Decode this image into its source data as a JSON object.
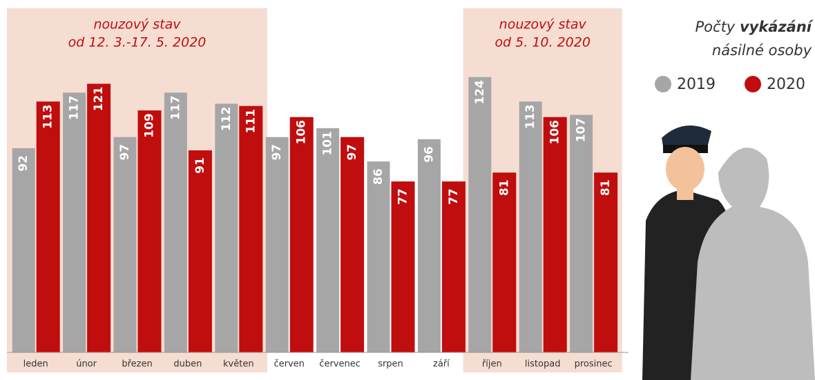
{
  "chart_data": {
    "type": "bar",
    "title": [
      "Počty",
      "vykázání",
      "násilné osoby"
    ],
    "categories": [
      "leden",
      "únor",
      "březen",
      "duben",
      "květen",
      "červen",
      "červenec",
      "srpen",
      "září",
      "říjen",
      "listopad",
      "prosinec"
    ],
    "series": [
      {
        "name": "2019",
        "color": "#a6a6a6",
        "values": [
          92,
          117,
          97,
          117,
          112,
          97,
          101,
          86,
          96,
          124,
          113,
          107
        ]
      },
      {
        "name": "2020",
        "color": "#c00d0e",
        "values": [
          113,
          121,
          109,
          91,
          111,
          106,
          97,
          77,
          77,
          81,
          106,
          81
        ]
      }
    ],
    "ylim": [
      0,
      155
    ],
    "annotations": [
      {
        "text": [
          "nouzový stav",
          "od 12. 3.-17. 5. 2020"
        ],
        "from": "leden",
        "to": "květen"
      },
      {
        "text": [
          "nouzový stav",
          "od 5. 10. 2020"
        ],
        "from": "říjen",
        "to": "prosinec"
      }
    ],
    "legend": "top-right"
  }
}
